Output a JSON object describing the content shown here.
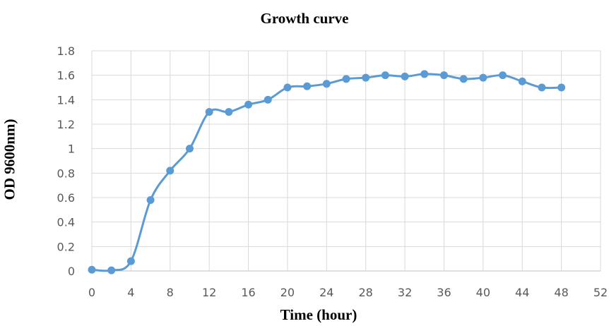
{
  "chart_data": {
    "type": "line",
    "title": "Growth curve",
    "xlabel": "Time (hour)",
    "ylabel": "OD 9600nm)",
    "xlim": [
      0,
      52
    ],
    "ylim": [
      0,
      1.8
    ],
    "xticks": [
      "0",
      "4",
      "8",
      "12",
      "16",
      "20",
      "24",
      "28",
      "32",
      "36",
      "40",
      "44",
      "48",
      "52"
    ],
    "yticks": [
      "0",
      "0.2",
      "0.4",
      "0.6",
      "0.8",
      "1",
      "1.2",
      "1.4",
      "1.6",
      "1.8"
    ],
    "grid": true,
    "smooth": true,
    "color": "#5b9bd5",
    "series": [
      {
        "x": [
          0,
          2,
          4,
          6,
          8,
          10,
          12,
          14,
          16,
          18,
          20,
          22,
          24,
          26,
          28,
          30,
          32,
          34,
          36,
          38,
          40,
          42,
          44,
          46,
          48
        ],
        "values": [
          0.01,
          0.005,
          0.08,
          0.58,
          0.82,
          1.0,
          1.3,
          1.3,
          1.36,
          1.4,
          1.5,
          1.51,
          1.53,
          1.57,
          1.58,
          1.6,
          1.59,
          1.61,
          1.6,
          1.57,
          1.58,
          1.6,
          1.55,
          1.5,
          1.5
        ]
      }
    ]
  }
}
